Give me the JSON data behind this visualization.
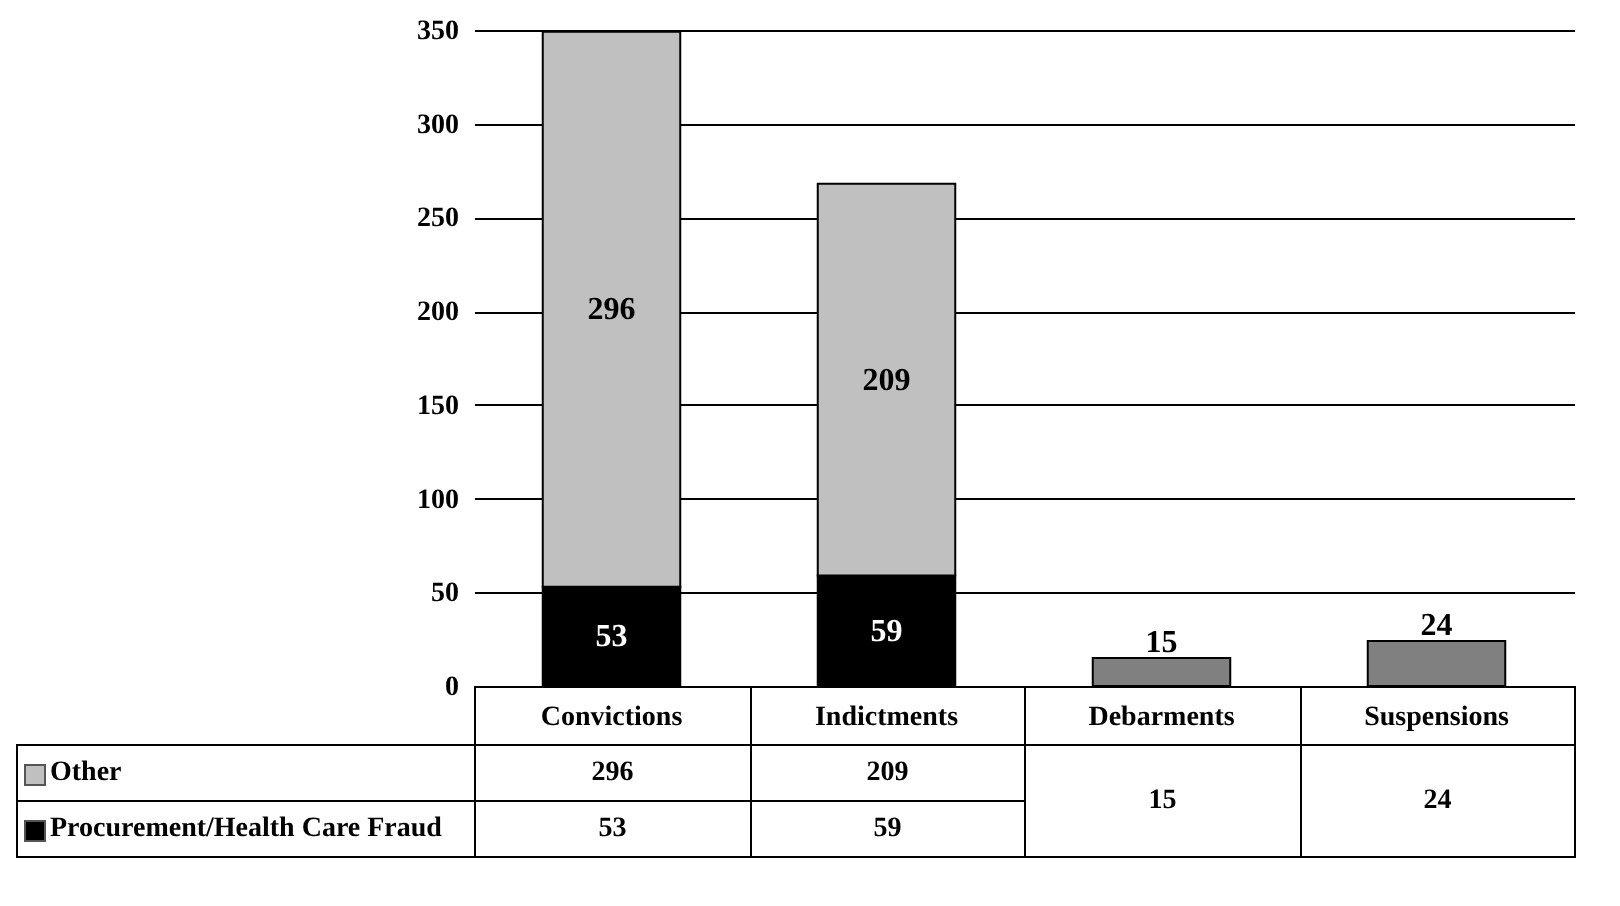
{
  "chart_data": {
    "type": "bar",
    "stacked": true,
    "categories": [
      "Convictions",
      "Indictments",
      "Debarments",
      "Suspensions"
    ],
    "series": [
      {
        "name": "Procurement/Health Care Fraud",
        "color": "#000000",
        "values": [
          53,
          59,
          null,
          null
        ],
        "value_labels": [
          "53",
          "59",
          null,
          null
        ]
      },
      {
        "name": "Other",
        "color": "#c0c0c0",
        "values": [
          296,
          209,
          null,
          null
        ],
        "value_labels": [
          "296",
          "209",
          null,
          null
        ]
      },
      {
        "color": "#808080",
        "values": [
          null,
          null,
          15,
          24
        ],
        "value_labels": [
          null,
          null,
          "15",
          "24"
        ]
      }
    ],
    "ylim": [
      0,
      350
    ],
    "yticks": [
      0,
      50,
      100,
      150,
      200,
      250,
      300,
      350
    ],
    "grid": "y",
    "legend": "bottom left"
  }
}
